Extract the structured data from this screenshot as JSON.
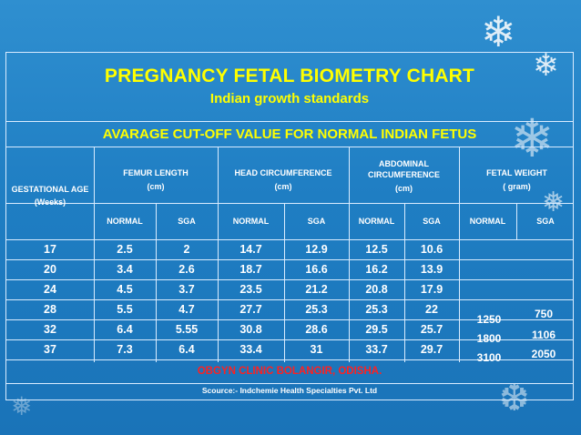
{
  "title": "PREGNANCY FETAL BIOMETRY CHART",
  "subtitle": "Indian growth standards",
  "cutoff_heading": "AVARAGE CUT-OFF VALUE FOR NORMAL INDIAN FETUS",
  "columns": {
    "gestational_age": "GESTATIONAL AGE",
    "gestational_age_unit": "(Weeks)",
    "femur_length": "FEMUR LENGTH",
    "femur_length_unit": "(cm)",
    "head_circumference": "HEAD CIRCUMFERENCE",
    "head_circumference_unit": "(cm)",
    "abdominal_1": "ABDOMINAL",
    "abdominal_2": "CIRCUMFERENCE",
    "abdominal_unit": "(cm)",
    "fetal_weight": "FETAL WEIGHT",
    "fetal_weight_unit": "( gram)",
    "normal": "NORMAL",
    "sga": "SGA"
  },
  "rows": [
    {
      "ga": "17",
      "fl_n": "2.5",
      "fl_s": "2",
      "hc_n": "14.7",
      "hc_s": "12.9",
      "ac_n": "12.5",
      "ac_s": "10.6"
    },
    {
      "ga": "20",
      "fl_n": "3.4",
      "fl_s": "2.6",
      "hc_n": "18.7",
      "hc_s": "16.6",
      "ac_n": "16.2",
      "ac_s": "13.9"
    },
    {
      "ga": "24",
      "fl_n": "4.5",
      "fl_s": "3.7",
      "hc_n": "23.5",
      "hc_s": "21.2",
      "ac_n": "20.8",
      "ac_s": "17.9"
    },
    {
      "ga": "28",
      "fl_n": "5.5",
      "fl_s": "4.7",
      "hc_n": "27.7",
      "hc_s": "25.3",
      "ac_n": "25.3",
      "ac_s": "22"
    },
    {
      "ga": "32",
      "fl_n": "6.4",
      "fl_s": "5.55",
      "hc_n": "30.8",
      "hc_s": "28.6",
      "ac_n": "29.5",
      "ac_s": "25.7"
    },
    {
      "ga": "37",
      "fl_n": "7.3",
      "fl_s": "6.4",
      "hc_n": "33.4",
      "hc_s": "31",
      "ac_n": "33.7",
      "ac_s": "29.7"
    }
  ],
  "fetal_weight": {
    "normal": [
      "1250",
      "1800",
      "3100"
    ],
    "sga": [
      "750",
      "1106",
      "2050"
    ]
  },
  "footer": {
    "clinic": "OBGYN CLINIC BOLANGIR, ODISHA.",
    "source": "Scource:-  Indchemie Health Specialties Pvt. Ltd"
  }
}
